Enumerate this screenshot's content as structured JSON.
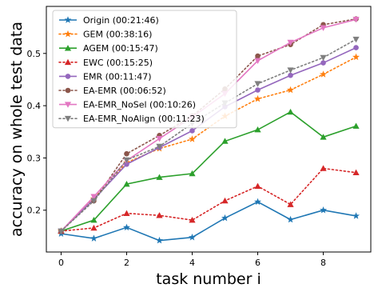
{
  "chart_data": {
    "type": "line",
    "title": "",
    "xlabel": "task number i",
    "ylabel": "accuracy on whole test data",
    "xlim": [
      -0.45,
      9.45
    ],
    "ylim": [
      0.12,
      0.59
    ],
    "xticks": [
      0,
      2,
      4,
      6,
      8
    ],
    "yticks": [
      0.2,
      0.3,
      0.4,
      0.5
    ],
    "xtick_labels": [
      "0",
      "2",
      "4",
      "6",
      "8"
    ],
    "ytick_labels": [
      "0.2",
      "0.3",
      "0.4",
      "0.5"
    ],
    "grid": false,
    "legend_position": "top-left",
    "x": [
      0,
      1,
      2,
      3,
      4,
      5,
      6,
      7,
      8,
      9
    ],
    "series": [
      {
        "name": "Origin (00:21:46)",
        "color": "#1f77b4",
        "line": "solid",
        "marker": "star",
        "values": [
          0.155,
          0.146,
          0.167,
          0.142,
          0.148,
          0.185,
          0.216,
          0.182,
          0.2,
          0.189
        ]
      },
      {
        "name": "GEM (00:38:16)",
        "color": "#ff7f0e",
        "line": "dotted",
        "marker": "star",
        "values": [
          0.16,
          0.222,
          0.291,
          0.318,
          0.336,
          0.38,
          0.413,
          0.43,
          0.46,
          0.493
        ]
      },
      {
        "name": "AGEM (00:15:47)",
        "color": "#2ca02c",
        "line": "solid",
        "marker": "triangle-up",
        "values": [
          0.16,
          0.181,
          0.25,
          0.263,
          0.27,
          0.332,
          0.354,
          0.388,
          0.34,
          0.361
        ]
      },
      {
        "name": "EWC (00:15:25)",
        "color": "#d62728",
        "line": "dotted",
        "marker": "triangle-up",
        "values": [
          0.16,
          0.166,
          0.194,
          0.19,
          0.181,
          0.218,
          0.246,
          0.211,
          0.28,
          0.272
        ]
      },
      {
        "name": "EMR (00:11:47)",
        "color": "#9467bd",
        "line": "solid",
        "marker": "circle",
        "values": [
          0.16,
          0.221,
          0.288,
          0.32,
          0.352,
          0.398,
          0.43,
          0.458,
          0.482,
          0.511
        ]
      },
      {
        "name": "EA-EMR (00:06:52)",
        "color": "#8c564b",
        "line": "dotted",
        "marker": "circle",
        "values": [
          0.16,
          0.218,
          0.308,
          0.343,
          0.38,
          0.432,
          0.495,
          0.517,
          0.555,
          0.566
        ]
      },
      {
        "name": "EA-EMR_NoSel (00:10:26)",
        "color": "#e377c2",
        "line": "solid",
        "marker": "triangle-down",
        "values": [
          0.16,
          0.226,
          0.295,
          0.337,
          0.378,
          0.423,
          0.486,
          0.521,
          0.549,
          0.565
        ]
      },
      {
        "name": "EA-EMR_NoAlign (00:11:23)",
        "color": "#7f7f7f",
        "line": "dotted",
        "marker": "triangle-down",
        "values": [
          0.16,
          0.218,
          0.296,
          0.322,
          0.366,
          0.405,
          0.442,
          0.468,
          0.492,
          0.527
        ]
      }
    ]
  }
}
